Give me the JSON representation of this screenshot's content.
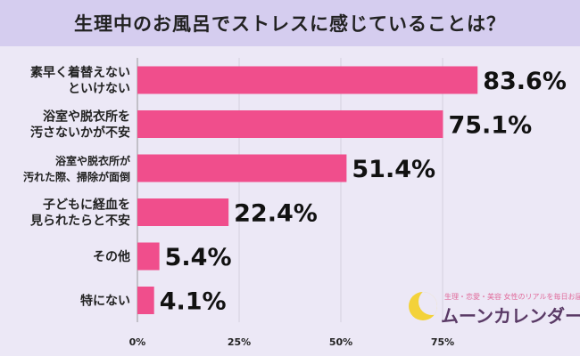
{
  "chart_data": {
    "type": "bar",
    "orientation": "horizontal",
    "title": "生理中のお風呂でストレスに感じていることは？",
    "categories": [
      [
        "素早く着替えない",
        "といけない"
      ],
      [
        "浴室や脱衣所を",
        "汚さないかが不安"
      ],
      [
        "浴室や脱衣所が",
        "汚れた際、掃除が面倒"
      ],
      [
        "子どもに経血を",
        "見られたらと不安"
      ],
      [
        "その他"
      ],
      [
        "特にない"
      ]
    ],
    "values": [
      83.6,
      75.1,
      51.4,
      22.4,
      5.4,
      4.1
    ],
    "value_labels": [
      "83.6%",
      "75.1%",
      "51.4%",
      "22.4%",
      "5.4%",
      "4.1%"
    ],
    "xticks": [
      "0%",
      "25%",
      "50%",
      "75%"
    ],
    "xlim": [
      0,
      100
    ],
    "grid": true,
    "bar_color": "#f04e8c"
  },
  "logo": {
    "tagline": "生理・恋愛・美容 女性のリアルを毎日お届け♪",
    "name": "ムーンカレンダー"
  }
}
